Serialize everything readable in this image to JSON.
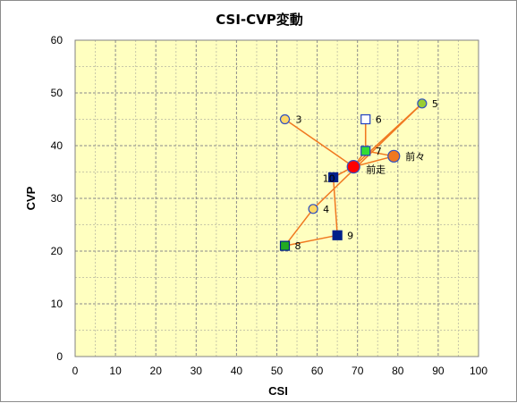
{
  "chart_data": {
    "type": "scatter",
    "title": "CSI-CVP変動",
    "xlabel": "CSI",
    "ylabel": "CVP",
    "xlim": [
      0,
      100
    ],
    "ylim": [
      0,
      60
    ],
    "xticks": [
      0,
      10,
      20,
      30,
      40,
      50,
      60,
      70,
      80,
      90,
      100
    ],
    "yticks": [
      0,
      10,
      20,
      30,
      40,
      50,
      60
    ],
    "grid": true,
    "colors": {
      "plot_bg": "#ffffc0",
      "line": "#f07820",
      "circle_yellow": "#ffd966",
      "circle_green": "#9acd32",
      "circle_orange": "#f07820",
      "circle_red": "#ff0000",
      "square_blue": "#00208a",
      "square_green": "#22aa22",
      "square_white": "#ffffff",
      "square_light_green": "#33dd33"
    },
    "points": [
      {
        "label": "3",
        "x": 52,
        "y": 45,
        "marker": "circle",
        "fill": "#ffd966",
        "stroke": "#3050c0",
        "size": 5
      },
      {
        "label": "4",
        "x": 59,
        "y": 28,
        "marker": "circle",
        "fill": "#ffd966",
        "stroke": "#3050c0",
        "size": 5
      },
      {
        "label": "5",
        "x": 86,
        "y": 48,
        "marker": "circle",
        "fill": "#9acd32",
        "stroke": "#3050c0",
        "size": 5
      },
      {
        "label": "6",
        "x": 72,
        "y": 45,
        "marker": "square",
        "fill": "#ffffff",
        "stroke": "#2040c0",
        "size": 5
      },
      {
        "label": "7",
        "x": 72,
        "y": 39,
        "marker": "square",
        "fill": "#33dd33",
        "stroke": "#2040c0",
        "size": 5
      },
      {
        "label": "8",
        "x": 52,
        "y": 21,
        "marker": "square",
        "fill": "#22aa22",
        "stroke": "#00208a",
        "size": 5
      },
      {
        "label": "9",
        "x": 65,
        "y": 23,
        "marker": "square",
        "fill": "#00208a",
        "stroke": "#00208a",
        "size": 5
      },
      {
        "label": "10",
        "x": 64,
        "y": 34,
        "marker": "square",
        "fill": "#00208a",
        "stroke": "#00208a",
        "size": 5
      },
      {
        "label": "前々",
        "x": 79,
        "y": 38,
        "marker": "circle",
        "fill": "#f07820",
        "stroke": "#3050c0",
        "size": 6.5
      },
      {
        "label": "前走",
        "x": 69,
        "y": 36,
        "marker": "circle",
        "fill": "#ff0000",
        "stroke": "#3050c0",
        "size": 7
      }
    ],
    "path_order": [
      "3",
      "前走",
      "前々",
      "7",
      "6",
      "7",
      "前走",
      "5",
      "4",
      "8",
      "9",
      "10",
      "前走"
    ]
  }
}
